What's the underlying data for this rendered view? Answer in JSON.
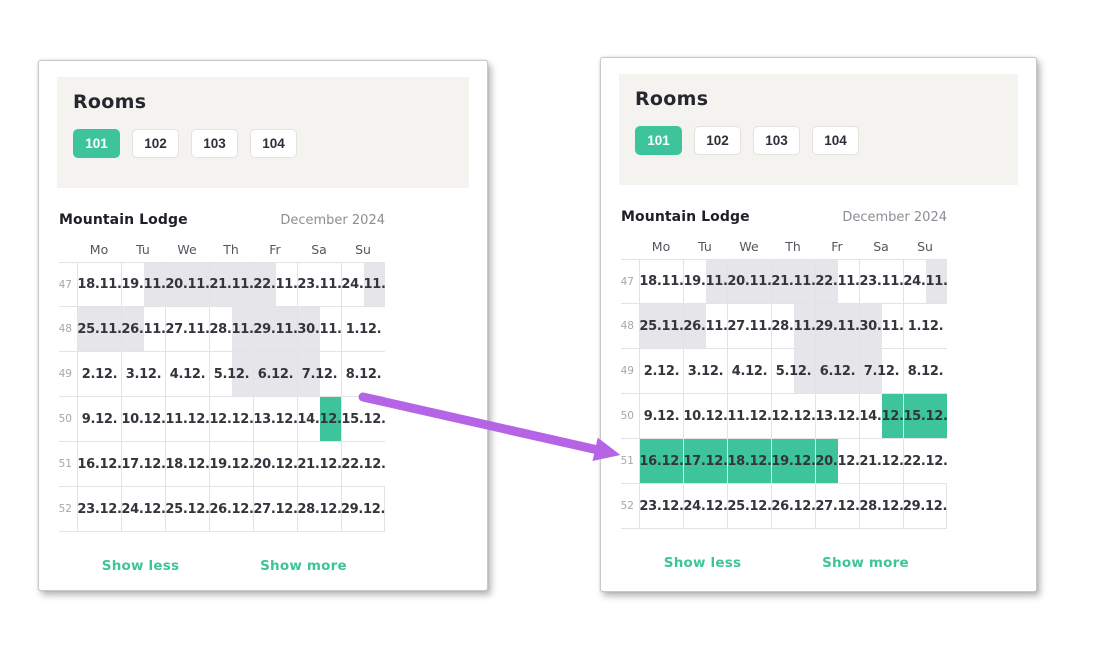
{
  "theme": {
    "accent_green": "#3ec49b",
    "booked_gray": "#e6e5e9",
    "band_background": "#f5f3f0",
    "arrow_purple": "#b564e6"
  },
  "panels": [
    {
      "state": "before",
      "rooms": {
        "title": "Rooms",
        "tabs": [
          {
            "label": "101",
            "selected": true
          },
          {
            "label": "102",
            "selected": false
          },
          {
            "label": "103",
            "selected": false
          },
          {
            "label": "104",
            "selected": false
          }
        ]
      },
      "calendar": {
        "property": "Mountain Lodge",
        "month": "December 2024",
        "day_headers": [
          "Mo",
          "Tu",
          "We",
          "Th",
          "Fr",
          "Sa",
          "Su"
        ],
        "weeks": [
          {
            "num": "47",
            "days": [
              {
                "date": "18.11.",
                "halves": "--"
              },
              {
                "date": "19.11.",
                "halves": "-g"
              },
              {
                "date": "20.11.",
                "halves": "gg"
              },
              {
                "date": "21.11.",
                "halves": "gg"
              },
              {
                "date": "22.11.",
                "halves": "g-"
              },
              {
                "date": "23.11.",
                "halves": "--"
              },
              {
                "date": "24.11.",
                "halves": "-g"
              }
            ]
          },
          {
            "num": "48",
            "days": [
              {
                "date": "25.11.",
                "halves": "gg"
              },
              {
                "date": "26.11.",
                "halves": "g-"
              },
              {
                "date": "27.11.",
                "halves": "--"
              },
              {
                "date": "28.11.",
                "halves": "-g"
              },
              {
                "date": "29.11.",
                "halves": "gg"
              },
              {
                "date": "30.11.",
                "halves": "g-"
              },
              {
                "date": "1.12.",
                "halves": "--"
              }
            ]
          },
          {
            "num": "49",
            "days": [
              {
                "date": "2.12.",
                "halves": "--"
              },
              {
                "date": "3.12.",
                "halves": "--"
              },
              {
                "date": "4.12.",
                "halves": "--"
              },
              {
                "date": "5.12.",
                "halves": "-g"
              },
              {
                "date": "6.12.",
                "halves": "gg"
              },
              {
                "date": "7.12.",
                "halves": "g-"
              },
              {
                "date": "8.12.",
                "halves": "--"
              }
            ]
          },
          {
            "num": "50",
            "days": [
              {
                "date": "9.12.",
                "halves": "--"
              },
              {
                "date": "10.12.",
                "halves": "--"
              },
              {
                "date": "11.12.",
                "halves": "--"
              },
              {
                "date": "12.12.",
                "halves": "--"
              },
              {
                "date": "13.12.",
                "halves": "--"
              },
              {
                "date": "14.12.",
                "halves": "-s"
              },
              {
                "date": "15.12.",
                "halves": "--"
              }
            ]
          },
          {
            "num": "51",
            "days": [
              {
                "date": "16.12.",
                "halves": "--"
              },
              {
                "date": "17.12.",
                "halves": "--"
              },
              {
                "date": "18.12.",
                "halves": "--"
              },
              {
                "date": "19.12.",
                "halves": "--"
              },
              {
                "date": "20.12.",
                "halves": "--"
              },
              {
                "date": "21.12.",
                "halves": "--"
              },
              {
                "date": "22.12.",
                "halves": "--"
              }
            ]
          },
          {
            "num": "52",
            "days": [
              {
                "date": "23.12.",
                "halves": "--"
              },
              {
                "date": "24.12.",
                "halves": "--"
              },
              {
                "date": "25.12.",
                "halves": "--"
              },
              {
                "date": "26.12.",
                "halves": "--"
              },
              {
                "date": "27.12.",
                "halves": "--"
              },
              {
                "date": "28.12.",
                "halves": "--"
              },
              {
                "date": "29.12.",
                "halves": "--"
              }
            ]
          }
        ],
        "links": {
          "show_less": "Show less",
          "show_more": "Show more"
        }
      }
    },
    {
      "state": "after",
      "rooms": {
        "title": "Rooms",
        "tabs": [
          {
            "label": "101",
            "selected": true
          },
          {
            "label": "102",
            "selected": false
          },
          {
            "label": "103",
            "selected": false
          },
          {
            "label": "104",
            "selected": false
          }
        ]
      },
      "calendar": {
        "property": "Mountain Lodge",
        "month": "December 2024",
        "day_headers": [
          "Mo",
          "Tu",
          "We",
          "Th",
          "Fr",
          "Sa",
          "Su"
        ],
        "weeks": [
          {
            "num": "47",
            "days": [
              {
                "date": "18.11.",
                "halves": "--"
              },
              {
                "date": "19.11.",
                "halves": "-g"
              },
              {
                "date": "20.11.",
                "halves": "gg"
              },
              {
                "date": "21.11.",
                "halves": "gg"
              },
              {
                "date": "22.11.",
                "halves": "g-"
              },
              {
                "date": "23.11.",
                "halves": "--"
              },
              {
                "date": "24.11.",
                "halves": "-g"
              }
            ]
          },
          {
            "num": "48",
            "days": [
              {
                "date": "25.11.",
                "halves": "gg"
              },
              {
                "date": "26.11.",
                "halves": "g-"
              },
              {
                "date": "27.11.",
                "halves": "--"
              },
              {
                "date": "28.11.",
                "halves": "-g"
              },
              {
                "date": "29.11.",
                "halves": "gg"
              },
              {
                "date": "30.11.",
                "halves": "g-"
              },
              {
                "date": "1.12.",
                "halves": "--"
              }
            ]
          },
          {
            "num": "49",
            "days": [
              {
                "date": "2.12.",
                "halves": "--"
              },
              {
                "date": "3.12.",
                "halves": "--"
              },
              {
                "date": "4.12.",
                "halves": "--"
              },
              {
                "date": "5.12.",
                "halves": "-g"
              },
              {
                "date": "6.12.",
                "halves": "gg"
              },
              {
                "date": "7.12.",
                "halves": "g-"
              },
              {
                "date": "8.12.",
                "halves": "--"
              }
            ]
          },
          {
            "num": "50",
            "days": [
              {
                "date": "9.12.",
                "halves": "--"
              },
              {
                "date": "10.12.",
                "halves": "--"
              },
              {
                "date": "11.12.",
                "halves": "--"
              },
              {
                "date": "12.12.",
                "halves": "--"
              },
              {
                "date": "13.12.",
                "halves": "--"
              },
              {
                "date": "14.12.",
                "halves": "-s"
              },
              {
                "date": "15.12.",
                "halves": "ss"
              }
            ]
          },
          {
            "num": "51",
            "days": [
              {
                "date": "16.12.",
                "halves": "ss"
              },
              {
                "date": "17.12.",
                "halves": "ss"
              },
              {
                "date": "18.12.",
                "halves": "ss"
              },
              {
                "date": "19.12.",
                "halves": "ss"
              },
              {
                "date": "20.12.",
                "halves": "s-"
              },
              {
                "date": "21.12.",
                "halves": "--"
              },
              {
                "date": "22.12.",
                "halves": "--"
              }
            ]
          },
          {
            "num": "52",
            "days": [
              {
                "date": "23.12.",
                "halves": "--"
              },
              {
                "date": "24.12.",
                "halves": "--"
              },
              {
                "date": "25.12.",
                "halves": "--"
              },
              {
                "date": "26.12.",
                "halves": "--"
              },
              {
                "date": "27.12.",
                "halves": "--"
              },
              {
                "date": "28.12.",
                "halves": "--"
              },
              {
                "date": "29.12.",
                "halves": "--"
              }
            ]
          }
        ],
        "links": {
          "show_less": "Show less",
          "show_more": "Show more"
        }
      }
    }
  ]
}
